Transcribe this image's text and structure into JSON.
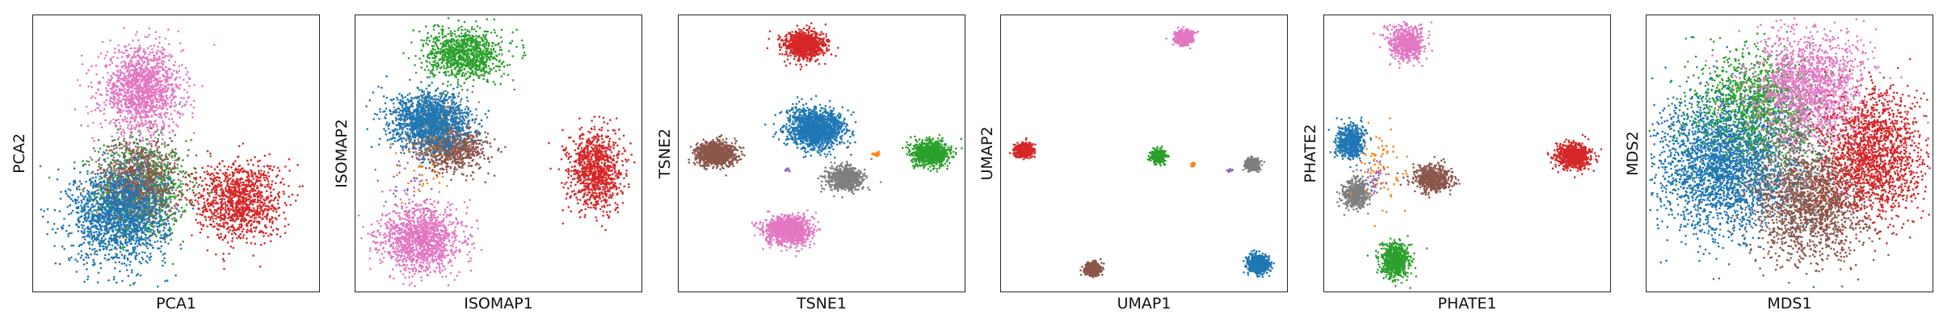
{
  "colors": {
    "blue": "#1f77b4",
    "orange": "#ff7f0e",
    "green": "#2ca02c",
    "red": "#d62728",
    "purple": "#9467bd",
    "brown": "#8c564b",
    "pink": "#e377c2",
    "gray": "#7f7f7f"
  },
  "chart_data": [
    {
      "type": "scatter",
      "xlabel": "PCA1",
      "ylabel": "PCA2",
      "xlim": [
        0,
        1
      ],
      "ylim": [
        0,
        1
      ],
      "grid": false,
      "ticks": false,
      "clusters": [
        {
          "color": "green",
          "cx": 0.38,
          "cy": 0.37,
          "sx": 0.08,
          "sy": 0.09,
          "n": 900
        },
        {
          "color": "gray",
          "cx": 0.36,
          "cy": 0.38,
          "sx": 0.07,
          "sy": 0.08,
          "n": 500
        },
        {
          "color": "brown",
          "cx": 0.37,
          "cy": 0.4,
          "sx": 0.07,
          "sy": 0.08,
          "n": 700
        },
        {
          "color": "pink",
          "cx": 0.38,
          "cy": 0.73,
          "sx": 0.07,
          "sy": 0.075,
          "n": 1400
        },
        {
          "color": "blue",
          "cx": 0.3,
          "cy": 0.27,
          "sx": 0.085,
          "sy": 0.085,
          "n": 1500
        },
        {
          "color": "red",
          "cx": 0.72,
          "cy": 0.33,
          "sx": 0.075,
          "sy": 0.07,
          "n": 1100
        }
      ]
    },
    {
      "type": "scatter",
      "xlabel": "ISOMAP1",
      "ylabel": "ISOMAP2",
      "xlim": [
        0,
        1
      ],
      "ylim": [
        0,
        1
      ],
      "grid": false,
      "ticks": false,
      "clusters": [
        {
          "color": "green",
          "cx": 0.38,
          "cy": 0.86,
          "sx": 0.065,
          "sy": 0.045,
          "n": 1000
        },
        {
          "color": "brown",
          "cx": 0.34,
          "cy": 0.52,
          "sx": 0.06,
          "sy": 0.04,
          "n": 800
        },
        {
          "color": "gray",
          "cx": 0.27,
          "cy": 0.6,
          "sx": 0.05,
          "sy": 0.05,
          "n": 400
        },
        {
          "color": "blue",
          "cx": 0.26,
          "cy": 0.62,
          "sx": 0.07,
          "sy": 0.05,
          "n": 1300
        },
        {
          "color": "pink",
          "cx": 0.23,
          "cy": 0.19,
          "sx": 0.07,
          "sy": 0.06,
          "n": 1300
        },
        {
          "color": "red",
          "cx": 0.84,
          "cy": 0.44,
          "sx": 0.045,
          "sy": 0.07,
          "n": 1000
        },
        {
          "color": "orange",
          "cx": 0.25,
          "cy": 0.45,
          "sx": 0.05,
          "sy": 0.08,
          "n": 40
        },
        {
          "color": "purple",
          "cx": 0.18,
          "cy": 0.4,
          "sx": 0.05,
          "sy": 0.08,
          "n": 40
        }
      ]
    },
    {
      "type": "scatter",
      "xlabel": "TSNE1",
      "ylabel": "TSNE2",
      "xlim": [
        0,
        1
      ],
      "ylim": [
        0,
        1
      ],
      "grid": false,
      "ticks": false,
      "clusters": [
        {
          "color": "red",
          "cx": 0.44,
          "cy": 0.89,
          "sx": 0.035,
          "sy": 0.025,
          "n": 1000
        },
        {
          "color": "blue",
          "cx": 0.48,
          "cy": 0.59,
          "sx": 0.05,
          "sy": 0.035,
          "n": 1400
        },
        {
          "color": "brown",
          "cx": 0.13,
          "cy": 0.5,
          "sx": 0.035,
          "sy": 0.022,
          "n": 900
        },
        {
          "color": "green",
          "cx": 0.88,
          "cy": 0.5,
          "sx": 0.032,
          "sy": 0.022,
          "n": 900
        },
        {
          "color": "gray",
          "cx": 0.58,
          "cy": 0.41,
          "sx": 0.03,
          "sy": 0.022,
          "n": 700
        },
        {
          "color": "pink",
          "cx": 0.38,
          "cy": 0.22,
          "sx": 0.04,
          "sy": 0.026,
          "n": 1100
        },
        {
          "color": "orange",
          "cx": 0.69,
          "cy": 0.5,
          "sx": 0.005,
          "sy": 0.005,
          "n": 15
        },
        {
          "color": "purple",
          "cx": 0.38,
          "cy": 0.44,
          "sx": 0.004,
          "sy": 0.004,
          "n": 12
        }
      ]
    },
    {
      "type": "scatter",
      "xlabel": "UMAP1",
      "ylabel": "UMAP2",
      "xlim": [
        0,
        1
      ],
      "ylim": [
        0,
        1
      ],
      "grid": false,
      "ticks": false,
      "clusters": [
        {
          "color": "pink",
          "cx": 0.64,
          "cy": 0.92,
          "sx": 0.015,
          "sy": 0.012,
          "n": 600
        },
        {
          "color": "red",
          "cx": 0.08,
          "cy": 0.51,
          "sx": 0.015,
          "sy": 0.012,
          "n": 600
        },
        {
          "color": "green",
          "cx": 0.55,
          "cy": 0.49,
          "sx": 0.012,
          "sy": 0.011,
          "n": 500
        },
        {
          "color": "orange",
          "cx": 0.67,
          "cy": 0.46,
          "sx": 0.004,
          "sy": 0.004,
          "n": 15
        },
        {
          "color": "purple",
          "cx": 0.8,
          "cy": 0.44,
          "sx": 0.004,
          "sy": 0.003,
          "n": 15
        },
        {
          "color": "gray",
          "cx": 0.88,
          "cy": 0.46,
          "sx": 0.011,
          "sy": 0.011,
          "n": 400
        },
        {
          "color": "brown",
          "cx": 0.32,
          "cy": 0.08,
          "sx": 0.014,
          "sy": 0.011,
          "n": 500
        },
        {
          "color": "blue",
          "cx": 0.9,
          "cy": 0.1,
          "sx": 0.017,
          "sy": 0.015,
          "n": 800
        }
      ]
    },
    {
      "type": "scatter",
      "xlabel": "PHATE1",
      "ylabel": "PHATE2",
      "xlim": [
        0,
        1
      ],
      "ylim": [
        0,
        1
      ],
      "grid": false,
      "ticks": false,
      "clusters": [
        {
          "color": "pink",
          "cx": 0.29,
          "cy": 0.9,
          "sx": 0.03,
          "sy": 0.03,
          "n": 600
        },
        {
          "color": "blue",
          "cx": 0.09,
          "cy": 0.54,
          "sx": 0.025,
          "sy": 0.03,
          "n": 600
        },
        {
          "color": "red",
          "cx": 0.87,
          "cy": 0.49,
          "sx": 0.03,
          "sy": 0.022,
          "n": 700
        },
        {
          "color": "brown",
          "cx": 0.38,
          "cy": 0.41,
          "sx": 0.03,
          "sy": 0.025,
          "n": 600
        },
        {
          "color": "gray",
          "cx": 0.11,
          "cy": 0.35,
          "sx": 0.022,
          "sy": 0.025,
          "n": 500
        },
        {
          "color": "green",
          "cx": 0.25,
          "cy": 0.11,
          "sx": 0.025,
          "sy": 0.03,
          "n": 700
        },
        {
          "color": "orange",
          "cx": 0.21,
          "cy": 0.44,
          "sx": 0.04,
          "sy": 0.08,
          "n": 80
        },
        {
          "color": "purple",
          "cx": 0.17,
          "cy": 0.4,
          "sx": 0.03,
          "sy": 0.03,
          "n": 40
        }
      ]
    },
    {
      "type": "scatter",
      "xlabel": "MDS1",
      "ylabel": "MDS2",
      "xlim": [
        0,
        1
      ],
      "ylim": [
        0,
        1
      ],
      "grid": false,
      "ticks": false,
      "clusters": [
        {
          "color": "green",
          "cx": 0.38,
          "cy": 0.65,
          "sx": 0.11,
          "sy": 0.11,
          "n": 1500
        },
        {
          "color": "pink",
          "cx": 0.57,
          "cy": 0.74,
          "sx": 0.1,
          "sy": 0.1,
          "n": 1600
        },
        {
          "color": "gray",
          "cx": 0.5,
          "cy": 0.4,
          "sx": 0.1,
          "sy": 0.1,
          "n": 700
        },
        {
          "color": "brown",
          "cx": 0.58,
          "cy": 0.32,
          "sx": 0.1,
          "sy": 0.1,
          "n": 1500
        },
        {
          "color": "red",
          "cx": 0.8,
          "cy": 0.5,
          "sx": 0.085,
          "sy": 0.11,
          "n": 1600
        },
        {
          "color": "blue",
          "cx": 0.25,
          "cy": 0.45,
          "sx": 0.11,
          "sy": 0.12,
          "n": 2200
        }
      ]
    }
  ]
}
